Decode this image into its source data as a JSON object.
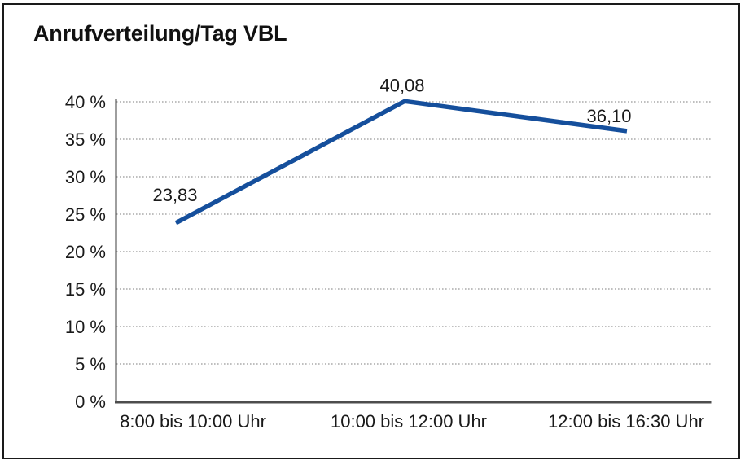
{
  "window": {
    "title": "Anrufverteilung/Tag VBL"
  },
  "chart_data": {
    "type": "line",
    "title": "Anrufverteilung/Tag VBL",
    "categories": [
      "8:00 bis 10:00 Uhr",
      "10:00 bis 12:00 Uhr",
      "12:00 bis 16:30 Uhr"
    ],
    "values": [
      23.83,
      40.08,
      36.1
    ],
    "data_labels": [
      "23,83",
      "40,08",
      "36,10"
    ],
    "xlabel": "",
    "ylabel": "",
    "ylim": [
      0,
      40
    ],
    "y_ticks": [
      0,
      5,
      10,
      15,
      20,
      25,
      30,
      35,
      40
    ],
    "y_tick_labels": [
      "0 %",
      "5 %",
      "10 %",
      "15 %",
      "20 %",
      "25 %",
      "30 %",
      "35 %",
      "40 %"
    ],
    "grid": "horizontal-dotted",
    "legend": "none",
    "line_color": "#154f9c",
    "grid_color": "#999999",
    "axis_color": "#3d3d3d",
    "text_color": "#1a1a1a"
  }
}
